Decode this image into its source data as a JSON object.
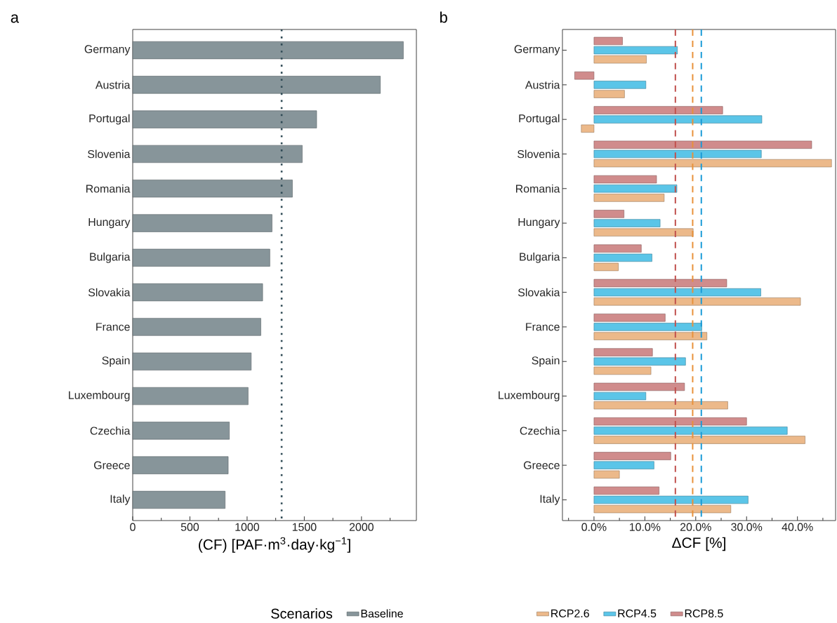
{
  "chart_data": [
    {
      "type": "bar",
      "title": "a",
      "orientation": "horizontal",
      "xlabel": "(CF) [PAF·m$^{3}$·day·kg$^{−1}$]",
      "legend_title": "Scenarios",
      "legend": "bottom",
      "categories": [
        "Germany",
        "Austria",
        "Portugal",
        "Slovenia",
        "Romania",
        "Hungary",
        "Bulgaria",
        "Slovakia",
        "France",
        "Spain",
        "Luxembourg",
        "Czechia",
        "Greece",
        "Italy"
      ],
      "series": [
        {
          "name": "Baseline",
          "color": "#87959a",
          "values": [
            2366,
            2165,
            1608,
            1482,
            1396,
            1218,
            1199,
            1136,
            1120,
            1036,
            1009,
            845,
            835,
            808
          ]
        }
      ],
      "xlim": [
        0,
        2480
      ],
      "xticks": [
        0,
        {
          "value": 250,
          "label": null
        },
        500,
        {
          "value": 750,
          "label": null
        },
        1000,
        {
          "value": 1250,
          "label": null
        },
        1500,
        {
          "value": 1750,
          "label": null
        },
        2000,
        {
          "value": 2250,
          "label": null
        }
      ],
      "ref_lines": [
        {
          "axis": "x",
          "value": 1302,
          "color": "#2f4a55",
          "line_style": "dotted"
        }
      ]
    },
    {
      "type": "bar",
      "title": "b",
      "orientation": "horizontal",
      "xlabel": "ΔCF [%]",
      "legend": "bottom",
      "categories": [
        "Germany",
        "Austria",
        "Portugal",
        "Slovenia",
        "Romania",
        "Hungary",
        "Bulgaria",
        "Slovakia",
        "France",
        "Spain",
        "Luxembourg",
        "Czechia",
        "Greece",
        "Italy"
      ],
      "series": [
        {
          "name": "RCP2.6",
          "color": "#ecb98a",
          "values": [
            10.3,
            6.0,
            -2.5,
            46.7,
            13.8,
            19.5,
            4.8,
            40.6,
            22.2,
            11.2,
            26.3,
            41.5,
            5.0,
            26.9
          ]
        },
        {
          "name": "RCP4.5",
          "color": "#5bc5e8",
          "values": [
            16.4,
            10.2,
            33.0,
            32.9,
            16.3,
            13.0,
            11.4,
            32.8,
            21.2,
            18.0,
            10.2,
            38.0,
            11.8,
            30.3
          ]
        },
        {
          "name": "RCP8.5",
          "color": "#d08c8c",
          "values": [
            5.6,
            -3.8,
            25.3,
            42.8,
            12.3,
            5.9,
            9.3,
            26.1,
            14.0,
            11.5,
            17.8,
            30.0,
            15.1,
            12.8
          ]
        }
      ],
      "xlim": [
        -6.2,
        47.5
      ],
      "xticks": [
        {
          "value": -5,
          "label": null
        },
        {
          "value": 0,
          "label": "0.0%"
        },
        {
          "value": 5,
          "label": null
        },
        {
          "value": 10,
          "label": "10.0%"
        },
        {
          "value": 15,
          "label": null
        },
        {
          "value": 20,
          "label": "20.0%"
        },
        {
          "value": 25,
          "label": null
        },
        {
          "value": 30,
          "label": "30.0%"
        },
        {
          "value": 35,
          "label": null
        },
        {
          "value": 40,
          "label": "40.0%"
        },
        {
          "value": 45,
          "label": null
        }
      ],
      "ref_lines": [
        {
          "axis": "x",
          "value": 16.0,
          "color": "#c0504d",
          "line_style": "dashed"
        },
        {
          "axis": "x",
          "value": 19.4,
          "color": "#e8913a",
          "line_style": "dashed"
        },
        {
          "axis": "x",
          "value": 21.1,
          "color": "#1a9bd7",
          "line_style": "dashed"
        }
      ]
    }
  ]
}
